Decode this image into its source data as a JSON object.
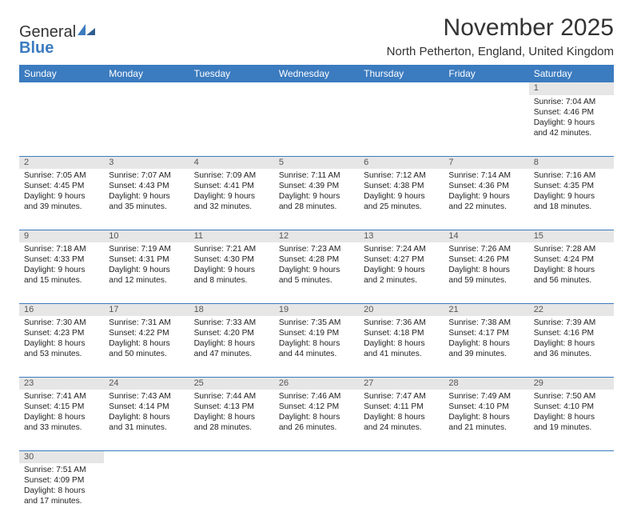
{
  "logo": {
    "text_general": "General",
    "text_blue": "Blue"
  },
  "header": {
    "month_title": "November 2025",
    "location": "North Petherton, England, United Kingdom"
  },
  "colors": {
    "header_bg": "#3b7bbf",
    "header_text": "#ffffff",
    "daynum_bg": "#e6e6e6",
    "row_sep": "#3b7bbf",
    "body_text": "#222222"
  },
  "weekdays": [
    "Sunday",
    "Monday",
    "Tuesday",
    "Wednesday",
    "Thursday",
    "Friday",
    "Saturday"
  ],
  "weeks": [
    [
      null,
      null,
      null,
      null,
      null,
      null,
      {
        "n": "1",
        "sunrise": "7:04 AM",
        "sunset": "4:46 PM",
        "dl_h": "9",
        "dl_m": "42"
      }
    ],
    [
      {
        "n": "2",
        "sunrise": "7:05 AM",
        "sunset": "4:45 PM",
        "dl_h": "9",
        "dl_m": "39"
      },
      {
        "n": "3",
        "sunrise": "7:07 AM",
        "sunset": "4:43 PM",
        "dl_h": "9",
        "dl_m": "35"
      },
      {
        "n": "4",
        "sunrise": "7:09 AM",
        "sunset": "4:41 PM",
        "dl_h": "9",
        "dl_m": "32"
      },
      {
        "n": "5",
        "sunrise": "7:11 AM",
        "sunset": "4:39 PM",
        "dl_h": "9",
        "dl_m": "28"
      },
      {
        "n": "6",
        "sunrise": "7:12 AM",
        "sunset": "4:38 PM",
        "dl_h": "9",
        "dl_m": "25"
      },
      {
        "n": "7",
        "sunrise": "7:14 AM",
        "sunset": "4:36 PM",
        "dl_h": "9",
        "dl_m": "22"
      },
      {
        "n": "8",
        "sunrise": "7:16 AM",
        "sunset": "4:35 PM",
        "dl_h": "9",
        "dl_m": "18"
      }
    ],
    [
      {
        "n": "9",
        "sunrise": "7:18 AM",
        "sunset": "4:33 PM",
        "dl_h": "9",
        "dl_m": "15"
      },
      {
        "n": "10",
        "sunrise": "7:19 AM",
        "sunset": "4:31 PM",
        "dl_h": "9",
        "dl_m": "12"
      },
      {
        "n": "11",
        "sunrise": "7:21 AM",
        "sunset": "4:30 PM",
        "dl_h": "9",
        "dl_m": "8"
      },
      {
        "n": "12",
        "sunrise": "7:23 AM",
        "sunset": "4:28 PM",
        "dl_h": "9",
        "dl_m": "5"
      },
      {
        "n": "13",
        "sunrise": "7:24 AM",
        "sunset": "4:27 PM",
        "dl_h": "9",
        "dl_m": "2"
      },
      {
        "n": "14",
        "sunrise": "7:26 AM",
        "sunset": "4:26 PM",
        "dl_h": "8",
        "dl_m": "59"
      },
      {
        "n": "15",
        "sunrise": "7:28 AM",
        "sunset": "4:24 PM",
        "dl_h": "8",
        "dl_m": "56"
      }
    ],
    [
      {
        "n": "16",
        "sunrise": "7:30 AM",
        "sunset": "4:23 PM",
        "dl_h": "8",
        "dl_m": "53"
      },
      {
        "n": "17",
        "sunrise": "7:31 AM",
        "sunset": "4:22 PM",
        "dl_h": "8",
        "dl_m": "50"
      },
      {
        "n": "18",
        "sunrise": "7:33 AM",
        "sunset": "4:20 PM",
        "dl_h": "8",
        "dl_m": "47"
      },
      {
        "n": "19",
        "sunrise": "7:35 AM",
        "sunset": "4:19 PM",
        "dl_h": "8",
        "dl_m": "44"
      },
      {
        "n": "20",
        "sunrise": "7:36 AM",
        "sunset": "4:18 PM",
        "dl_h": "8",
        "dl_m": "41"
      },
      {
        "n": "21",
        "sunrise": "7:38 AM",
        "sunset": "4:17 PM",
        "dl_h": "8",
        "dl_m": "39"
      },
      {
        "n": "22",
        "sunrise": "7:39 AM",
        "sunset": "4:16 PM",
        "dl_h": "8",
        "dl_m": "36"
      }
    ],
    [
      {
        "n": "23",
        "sunrise": "7:41 AM",
        "sunset": "4:15 PM",
        "dl_h": "8",
        "dl_m": "33"
      },
      {
        "n": "24",
        "sunrise": "7:43 AM",
        "sunset": "4:14 PM",
        "dl_h": "8",
        "dl_m": "31"
      },
      {
        "n": "25",
        "sunrise": "7:44 AM",
        "sunset": "4:13 PM",
        "dl_h": "8",
        "dl_m": "28"
      },
      {
        "n": "26",
        "sunrise": "7:46 AM",
        "sunset": "4:12 PM",
        "dl_h": "8",
        "dl_m": "26"
      },
      {
        "n": "27",
        "sunrise": "7:47 AM",
        "sunset": "4:11 PM",
        "dl_h": "8",
        "dl_m": "24"
      },
      {
        "n": "28",
        "sunrise": "7:49 AM",
        "sunset": "4:10 PM",
        "dl_h": "8",
        "dl_m": "21"
      },
      {
        "n": "29",
        "sunrise": "7:50 AM",
        "sunset": "4:10 PM",
        "dl_h": "8",
        "dl_m": "19"
      }
    ],
    [
      {
        "n": "30",
        "sunrise": "7:51 AM",
        "sunset": "4:09 PM",
        "dl_h": "8",
        "dl_m": "17"
      },
      null,
      null,
      null,
      null,
      null,
      null
    ]
  ],
  "labels": {
    "sunrise_prefix": "Sunrise: ",
    "sunset_prefix": "Sunset: ",
    "daylight_prefix": "Daylight: ",
    "hours_word": " hours",
    "and_word": "and ",
    "minutes_suffix": " minutes."
  }
}
